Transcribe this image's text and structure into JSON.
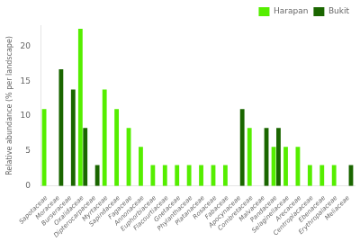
{
  "chart_data": {
    "type": "bar",
    "categories": [
      "Sapotaceae",
      "Moraceae",
      "Burseraceae",
      "Oxalidaceae",
      "Dipterocarpaceae",
      "Myrtaceae",
      "Sapindaceae",
      "Fagaceae",
      "Annonaceae",
      "Euphorbiaceae",
      "Flacourtiaceae",
      "Gnetaceae",
      "Phylanthaceae",
      "Platanaceae",
      "Rosaceae",
      "Fabaceae",
      "Apocynaceae",
      "Combretaceae",
      "Malvaceae",
      "Pandaceae",
      "Selaginellaceae",
      "Arecaceae",
      "Centroplacaceae",
      "Ebenaceae",
      "Erythropalaceae",
      "Meliaceae"
    ],
    "series": [
      {
        "name": "Harapan",
        "color": "#55ee00",
        "values": [
          11.0,
          0,
          0,
          22.5,
          0,
          13.8,
          11.0,
          8.3,
          5.6,
          3.0,
          3.0,
          3.0,
          3.0,
          3.0,
          3.0,
          3.0,
          0,
          8.3,
          0,
          5.6,
          5.6,
          5.6,
          3.0,
          3.0,
          3.0,
          0
        ]
      },
      {
        "name": "Bukit",
        "color": "#1a6600",
        "values": [
          0,
          16.7,
          13.8,
          8.3,
          3.0,
          0,
          0,
          0,
          0,
          0,
          0,
          0,
          0,
          0,
          0,
          0,
          11.0,
          0,
          8.3,
          8.3,
          0,
          0,
          0,
          0,
          0,
          3.0
        ]
      }
    ],
    "ylabel": "Relative abundance (% per landscape)",
    "ylim": [
      0,
      23
    ],
    "yticks": [
      0,
      5,
      10,
      15,
      20
    ],
    "legend": "upper right",
    "grid": false
  }
}
